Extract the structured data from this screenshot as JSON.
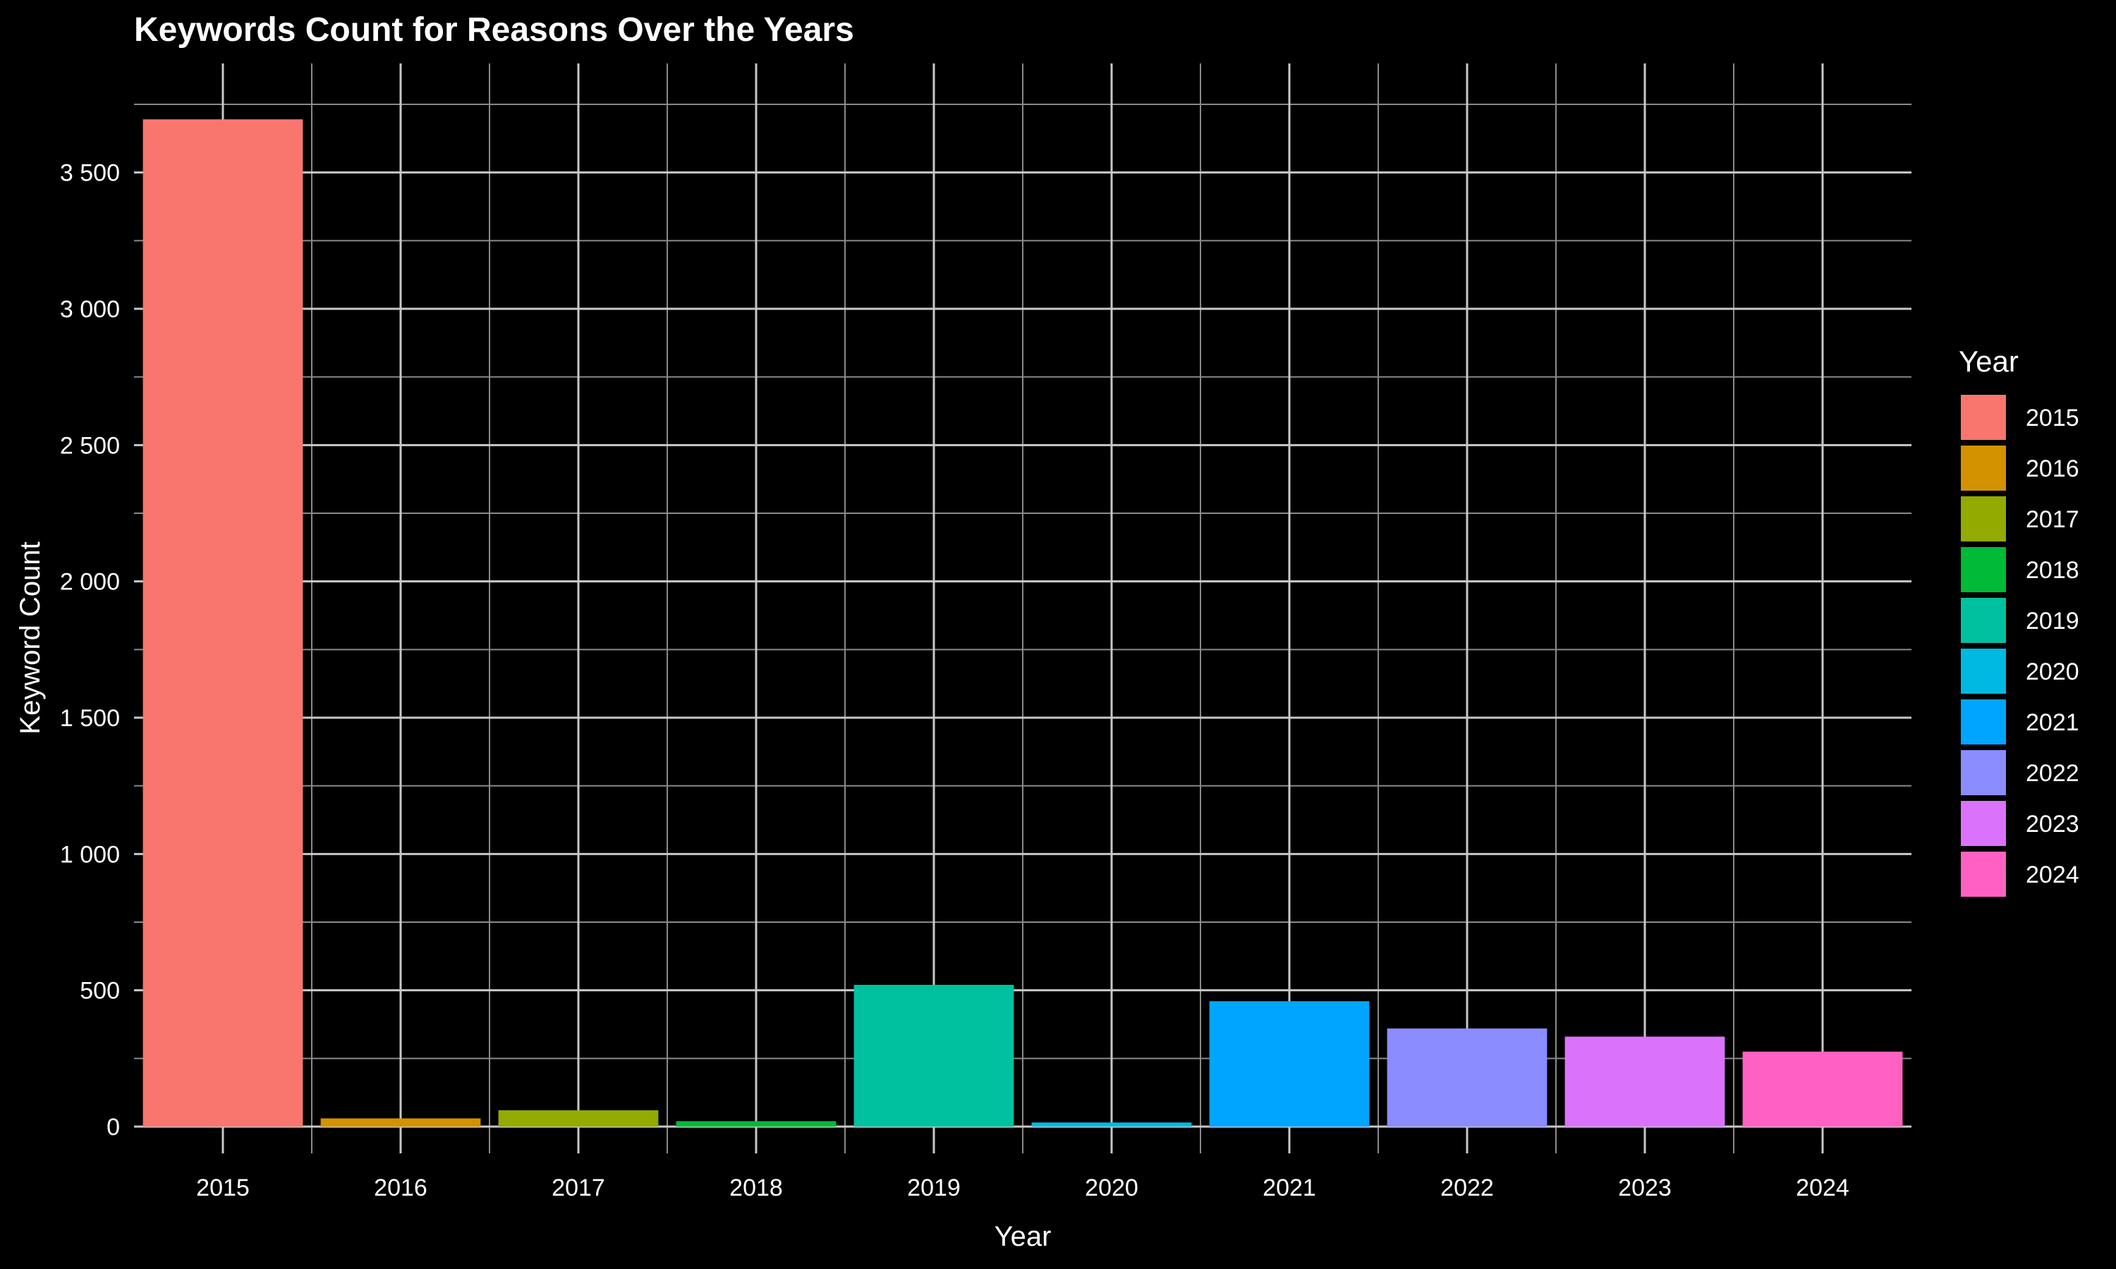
{
  "chart_data": {
    "type": "bar",
    "title": "Keywords Count for Reasons Over the Years",
    "xlabel": "Year",
    "ylabel": "Keyword Count",
    "categories": [
      "2015",
      "2016",
      "2017",
      "2018",
      "2019",
      "2020",
      "2021",
      "2022",
      "2023",
      "2024"
    ],
    "values": [
      3695,
      30,
      60,
      20,
      520,
      15,
      460,
      360,
      330,
      275
    ],
    "colors": [
      "#F8766D",
      "#D39200",
      "#93AA00",
      "#00BA38",
      "#00C19F",
      "#00B9E3",
      "#00A5FF",
      "#8B8CFF",
      "#DB72FB",
      "#FF61C3"
    ],
    "ylim": [
      0,
      3900
    ],
    "yticks": [
      0,
      500,
      1000,
      1500,
      2000,
      2500,
      3000,
      3500
    ],
    "ytick_labels": [
      "0",
      "500",
      "1 000",
      "1 500",
      "2 000",
      "2 500",
      "3 000",
      "3 500"
    ],
    "grid": true,
    "legend": {
      "title": "Year",
      "position": "right",
      "entries": [
        "2015",
        "2016",
        "2017",
        "2018",
        "2019",
        "2020",
        "2021",
        "2022",
        "2023",
        "2024"
      ]
    }
  }
}
